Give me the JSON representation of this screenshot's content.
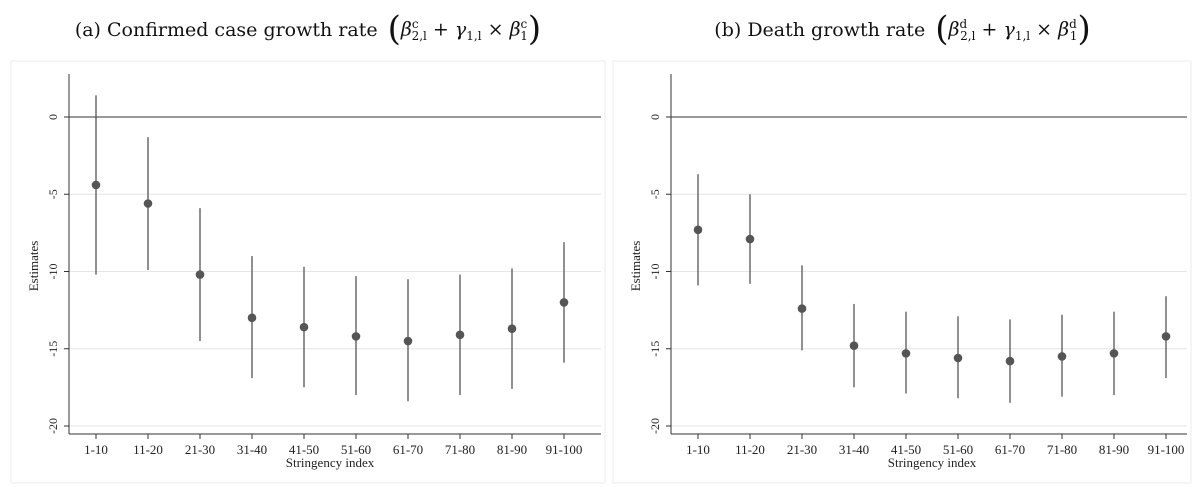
{
  "panels": [
    {
      "title": {
        "prefix": "(a) Confirmed case growth rate",
        "formula": "β_{2,l}^c + γ_{1,l} × β_1^c",
        "beta2": "β",
        "beta2_sub": "2,l",
        "beta2_sup": "c",
        "plus": "+",
        "gamma": "γ",
        "gamma_sub": "1,l",
        "times": "×",
        "beta1": "β",
        "beta1_sub": "1",
        "beta1_sup": "c"
      }
    },
    {
      "title": {
        "prefix": "(b) Death growth rate",
        "formula": "β_{2,l}^d + γ_{1,l} × β_1^d",
        "beta2": "β",
        "beta2_sub": "2,l",
        "beta2_sup": "d",
        "plus": "+",
        "gamma": "γ",
        "gamma_sub": "1,l",
        "times": "×",
        "beta1": "β",
        "beta1_sub": "1",
        "beta1_sup": "d"
      }
    }
  ],
  "chart_data": [
    {
      "type": "scatter",
      "subtype": "point estimates with confidence intervals",
      "title": "(a) Confirmed case growth rate (β_{2,l}^c + γ_{1,l} × β_1^c)",
      "xlabel": "Stringency index",
      "ylabel": "Estimates",
      "categories": [
        "1-10",
        "11-20",
        "21-30",
        "31-40",
        "41-50",
        "51-60",
        "61-70",
        "71-80",
        "81-90",
        "91-100"
      ],
      "values": [
        -4.4,
        -5.6,
        -10.2,
        -13.0,
        -13.6,
        -14.2,
        -14.5,
        -14.1,
        -13.7,
        -12.0
      ],
      "ci_low": [
        -10.2,
        -9.9,
        -14.5,
        -16.9,
        -17.5,
        -18.0,
        -18.4,
        -18.0,
        -17.6,
        -15.9
      ],
      "ci_high": [
        1.4,
        -1.3,
        -5.9,
        -9.0,
        -9.7,
        -10.3,
        -10.5,
        -10.2,
        -9.8,
        -8.1
      ],
      "yticks": [
        0,
        -5,
        -10,
        -15,
        -20
      ],
      "ylim": [
        -20.5,
        2.6
      ],
      "reference_line": 0,
      "grid": "horizontal",
      "color": "#555555"
    },
    {
      "type": "scatter",
      "subtype": "point estimates with confidence intervals",
      "title": "(b) Death growth rate (β_{2,l}^d + γ_{1,l} × β_1^d)",
      "xlabel": "Stringency index",
      "ylabel": "Estimates",
      "categories": [
        "1-10",
        "11-20",
        "21-30",
        "31-40",
        "41-50",
        "51-60",
        "61-70",
        "71-80",
        "81-90",
        "91-100"
      ],
      "values": [
        -7.3,
        -7.9,
        -12.4,
        -14.8,
        -15.3,
        -15.6,
        -15.8,
        -15.5,
        -15.3,
        -14.2
      ],
      "ci_low": [
        -10.9,
        -10.8,
        -15.1,
        -17.5,
        -17.9,
        -18.2,
        -18.5,
        -18.1,
        -18.0,
        -16.9
      ],
      "ci_high": [
        -3.7,
        -5.0,
        -9.6,
        -12.1,
        -12.6,
        -12.9,
        -13.1,
        -12.8,
        -12.6,
        -11.6
      ],
      "yticks": [
        0,
        -5,
        -10,
        -15,
        -20
      ],
      "ylim": [
        -20.5,
        2.6
      ],
      "reference_line": 0,
      "grid": "horizontal",
      "color": "#555555"
    }
  ]
}
